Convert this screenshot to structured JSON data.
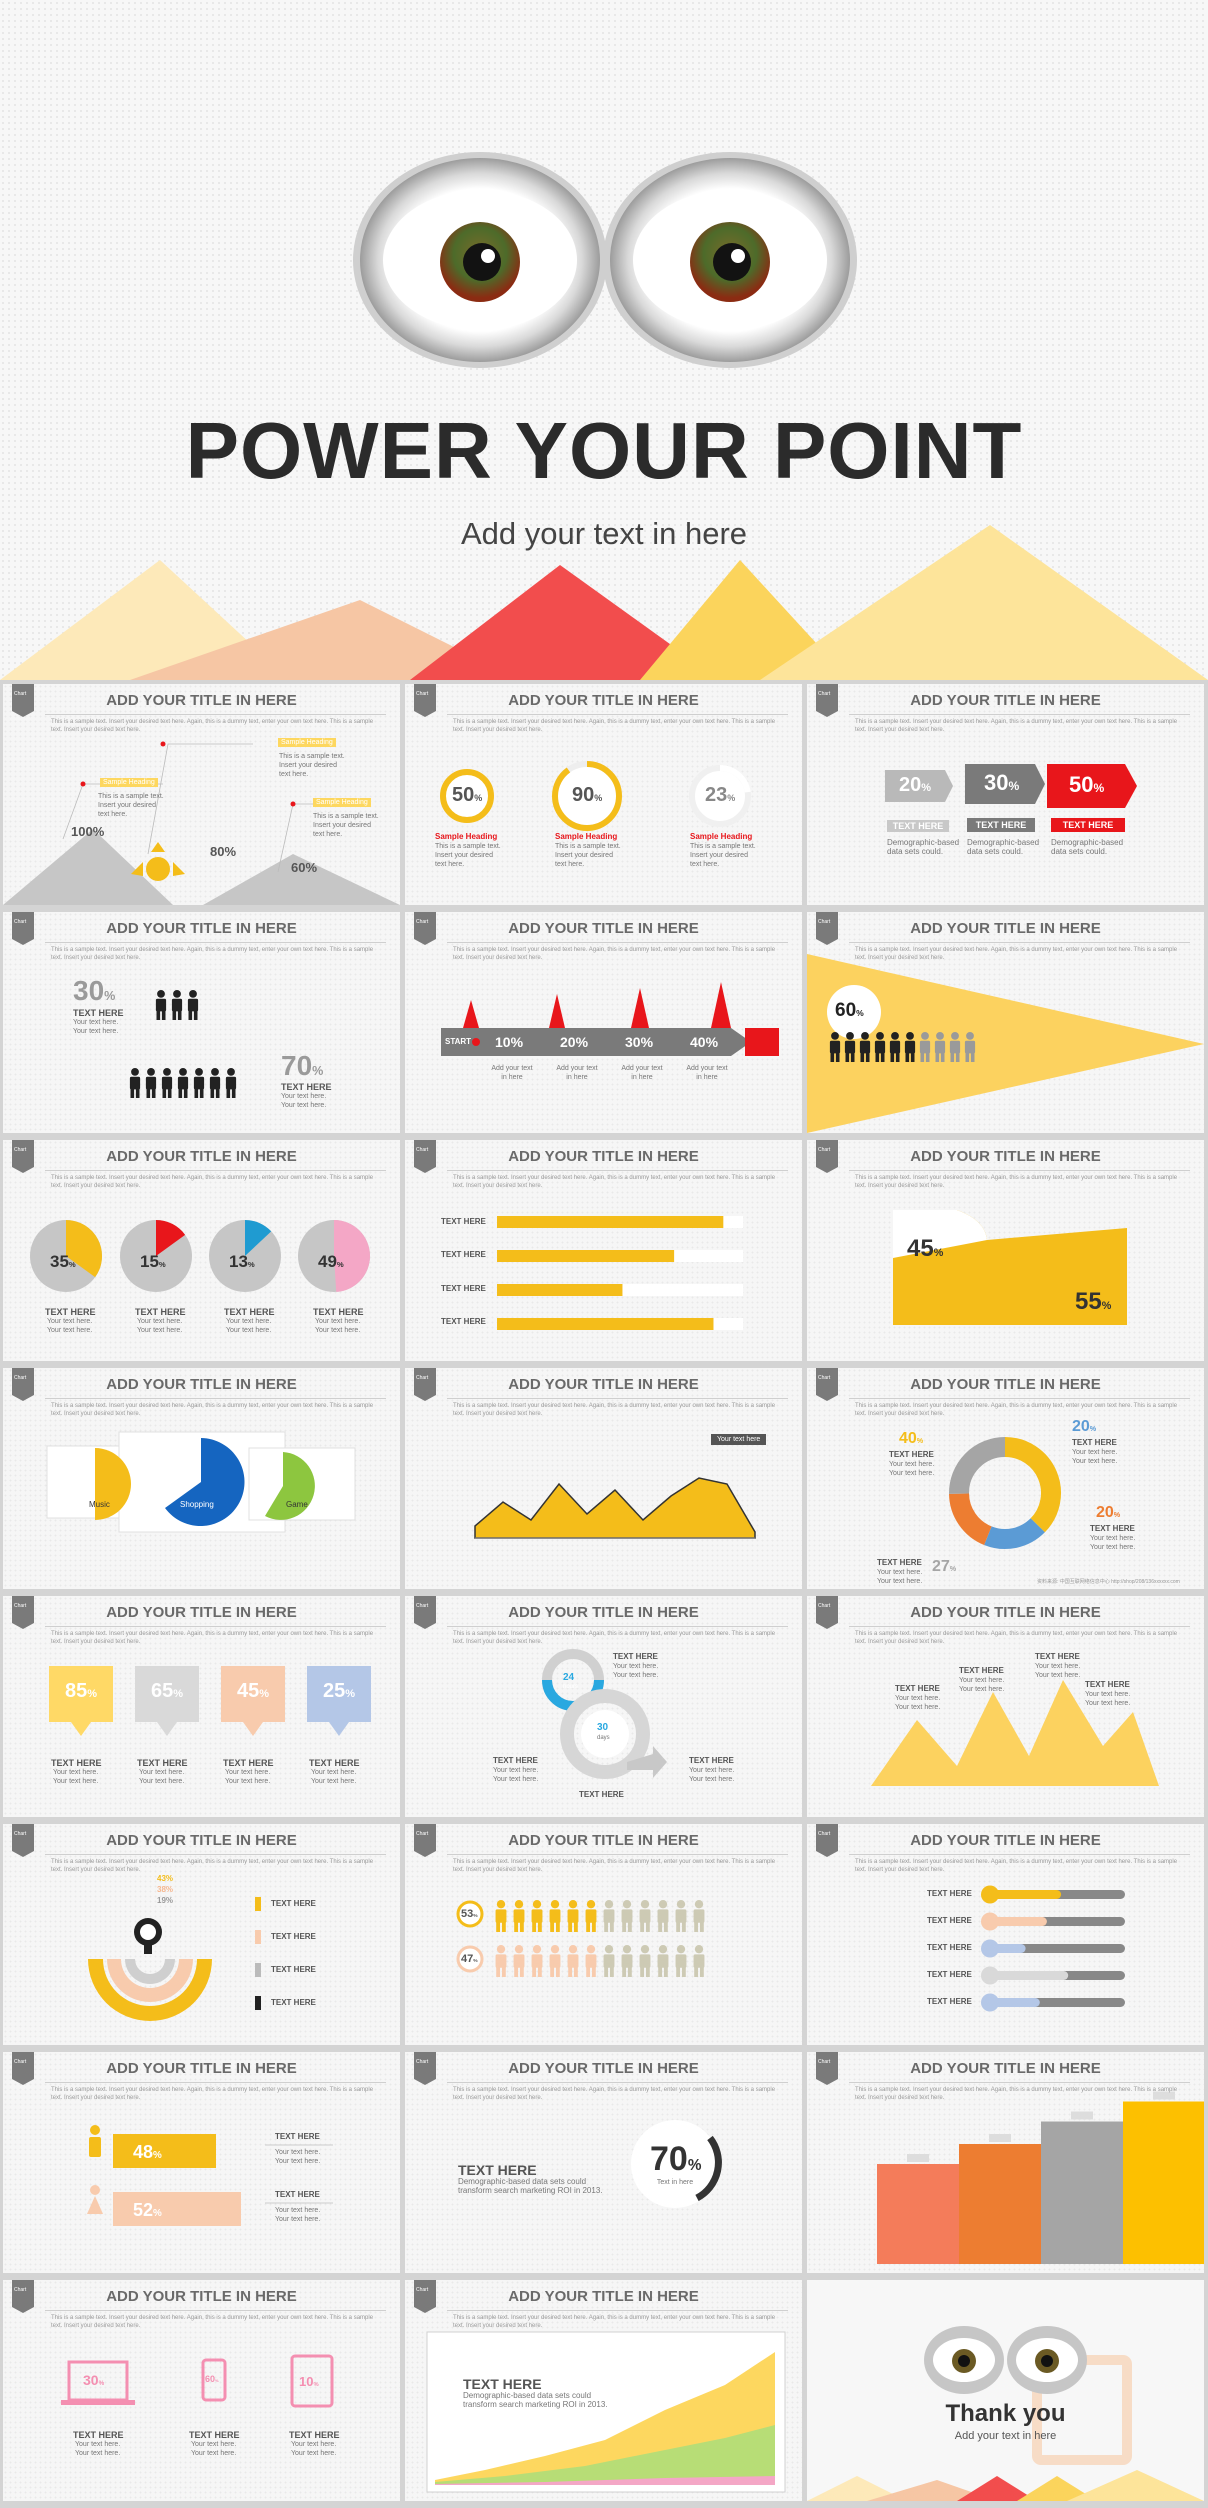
{
  "cover": {
    "title": "POWER YOUR POINT",
    "subtitle": "Add your text in here"
  },
  "common": {
    "badge": "Chart",
    "title": "ADD YOUR TITLE IN HERE",
    "desc": "This is a sample text. Insert your desired text here. Again, this is a dummy text, enter your own text here. This is a sample text. Insert your desired text here.",
    "text_here": "TEXT HERE",
    "your_text": "Your text here.\nYour text here.",
    "add_text": "Add your text\nin here",
    "sample_heading": "Sample Heading",
    "small_text": "This is a sample text.\nInsert your desired\ntext here.",
    "demographic": "Demographic-based\ndata sets could."
  },
  "s1": {
    "callouts": [
      "Sample Heading",
      "Sample Heading",
      "Sample Heading"
    ],
    "values": [
      "100%",
      "80%",
      "60%"
    ]
  },
  "s2": {
    "rings": [
      {
        "value": 50,
        "label": "50",
        "unit": "%"
      },
      {
        "value": 90,
        "label": "90",
        "unit": "%"
      },
      {
        "value": 23,
        "label": "23",
        "unit": "%"
      }
    ]
  },
  "s3": {
    "arrows": [
      {
        "label": "20",
        "unit": "%",
        "color": "#b9b9b9"
      },
      {
        "label": "30",
        "unit": "%",
        "color": "#7a7a7a"
      },
      {
        "label": "50",
        "unit": "%",
        "color": "#e8161b"
      }
    ]
  },
  "s4": {
    "values": [
      {
        "label": "30",
        "unit": "%"
      },
      {
        "label": "70",
        "unit": "%"
      }
    ]
  },
  "s5": {
    "start": "START",
    "steps": [
      "10%",
      "20%",
      "30%",
      "40%"
    ]
  },
  "s6": {
    "value": {
      "label": "60",
      "unit": "%"
    }
  },
  "s7": {
    "pies": [
      {
        "value": 35,
        "label": "35",
        "unit": "%",
        "color": "#f4bd1a"
      },
      {
        "value": 15,
        "label": "15",
        "unit": "%",
        "color": "#e8161b"
      },
      {
        "value": 13,
        "label": "13",
        "unit": "%",
        "color": "#1f9bd1"
      },
      {
        "value": 49,
        "label": "49",
        "unit": "%",
        "color": "#f4a7c6"
      }
    ]
  },
  "s8": {
    "bars": [
      0.92,
      0.72,
      0.51,
      0.88
    ]
  },
  "s9": {
    "values": [
      {
        "label": "45",
        "unit": "%"
      },
      {
        "label": "55",
        "unit": "%"
      }
    ]
  },
  "s10": {
    "labels": [
      "Music",
      "Shopping",
      "Game"
    ]
  },
  "s11": {
    "tooltip": "Your text here",
    "series": [
      2,
      6,
      3,
      9,
      4,
      8,
      3,
      7,
      10,
      9,
      1
    ]
  },
  "s12": {
    "segments": [
      {
        "label": "40",
        "value": 40,
        "color": "#f4bd1a"
      },
      {
        "label": "20",
        "value": 20,
        "color": "#5b9bd5"
      },
      {
        "label": "20",
        "value": 20,
        "color": "#ed7d31"
      },
      {
        "label": "27",
        "value": 27,
        "color": "#a5a5a5"
      }
    ],
    "unit": "%",
    "footnote": "资料来源: 中国互联网络信息中心  http://shop/208/136xxxxxx.com"
  },
  "s13": {
    "tags": [
      {
        "label": "85",
        "unit": "%",
        "color": "#ffd966"
      },
      {
        "label": "65",
        "unit": "%",
        "color": "#d9d9d9"
      },
      {
        "label": "45",
        "unit": "%",
        "color": "#f8cbad"
      },
      {
        "label": "25",
        "unit": "%",
        "color": "#b4c7e7"
      }
    ]
  },
  "s14": {
    "hours": "24",
    "hours_label": "hours",
    "days": "30",
    "days_label": "days"
  },
  "s16": {
    "values": [
      "43%",
      "38%",
      "19%"
    ]
  },
  "s17": {
    "rows": [
      {
        "label": "53",
        "unit": "%"
      },
      {
        "label": "47",
        "unit": "%"
      }
    ]
  },
  "s18": {
    "bars": [
      0.55,
      0.45,
      0.3,
      0.6,
      0.4
    ],
    "colors": [
      "#f4bd1a",
      "#f8cbad",
      "#b4c7e7",
      "#d9d9d9",
      "#b4c7e7"
    ]
  },
  "s19": {
    "values": [
      {
        "label": "48",
        "unit": "%"
      },
      {
        "label": "52",
        "unit": "%"
      }
    ]
  },
  "s20": {
    "text": "Demographic-based data sets could\ntransform search marketing ROI in 2013.",
    "value": {
      "label": "70",
      "unit": "%"
    },
    "value_sub": "Text in here"
  },
  "s21": {
    "bars": [
      {
        "value": 2,
        "color": "#f47c5a"
      },
      {
        "value": 2.4,
        "color": "#ed7d31"
      },
      {
        "value": 2.85,
        "color": "#a5a5a5"
      },
      {
        "value": 3.25,
        "color": "#fdc000"
      }
    ]
  },
  "s22": {
    "values": [
      {
        "label": "30",
        "unit": "%"
      },
      {
        "label": "60",
        "unit": "%"
      },
      {
        "label": "10",
        "unit": "%"
      }
    ]
  },
  "s23": {
    "text": "Demographic-based data sets could\ntransform search marketing ROI in 2013."
  },
  "s24": {
    "title": "Thank you",
    "subtitle": "Add your text in here"
  }
}
